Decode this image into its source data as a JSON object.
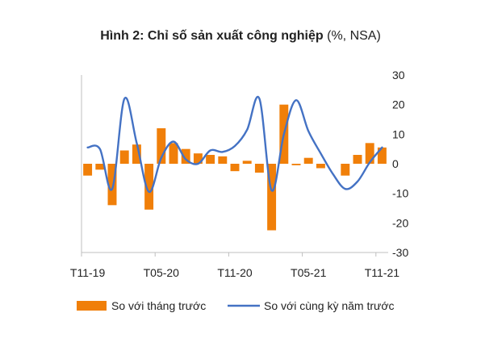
{
  "title": {
    "bold": "Hình 2: Chỉ số sản xuất công nghiệp",
    "normal": "(%, NSA)"
  },
  "chart_data": {
    "type": "bar+line",
    "categories": [
      "T11-19",
      "T12-19",
      "T01-20",
      "T02-20",
      "T03-20",
      "T04-20",
      "T05-20",
      "T06-20",
      "T07-20",
      "T08-20",
      "T09-20",
      "T10-20",
      "T11-20",
      "T12-20",
      "T01-21",
      "T02-21",
      "T03-21",
      "T04-21",
      "T05-21",
      "T06-21",
      "T07-21",
      "T08-21",
      "T09-21",
      "T10-21",
      "T11-21"
    ],
    "x_tick_labels": [
      "T11-19",
      "T05-20",
      "T11-20",
      "T05-21",
      "T11-21"
    ],
    "ylim": [
      -30,
      30
    ],
    "yticks": [
      -30,
      -20,
      -10,
      0,
      10,
      20,
      30
    ],
    "series": [
      {
        "name": "So với tháng trước",
        "type": "bar",
        "color": "#F07F09",
        "values": [
          -4,
          -2,
          -14,
          4.5,
          6.5,
          -15.5,
          12,
          7,
          5,
          3.5,
          3,
          2.5,
          -2.5,
          1,
          -3,
          -22.5,
          20,
          -0.5,
          2,
          -1.5,
          0,
          -4,
          3,
          7,
          5.5
        ]
      },
      {
        "name": "So với cùng kỳ năm trước",
        "type": "line",
        "color": "#4472C4",
        "values": [
          5.5,
          5,
          -8.5,
          22,
          7,
          -9.5,
          2,
          7.5,
          1.5,
          0,
          4.5,
          4,
          6,
          11.5,
          22,
          -9,
          10,
          21.5,
          11,
          3.5,
          -3.5,
          -8.5,
          -6,
          0.5,
          5.5
        ]
      }
    ],
    "grid": false,
    "legend_position": "bottom"
  }
}
